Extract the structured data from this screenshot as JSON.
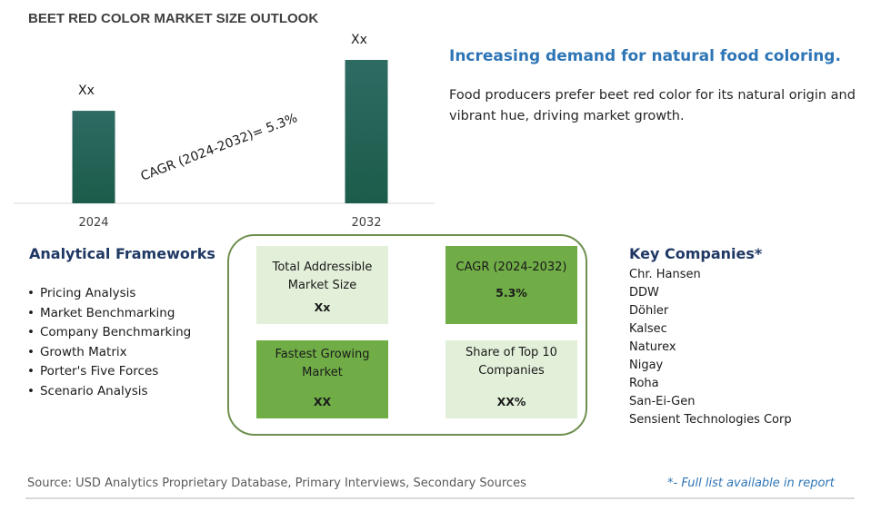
{
  "title": "BEET RED COLOR MARKET SIZE OUTLOOK",
  "chart_data": {
    "type": "bar",
    "categories": [
      "2024",
      "2032"
    ],
    "values": [
      1.0,
      1.55
    ],
    "data_labels": [
      "Xx",
      "Xx"
    ],
    "annotation": "CAGR (2024-2032)=  5.3%",
    "colors": {
      "bar_top": "#2e6b63",
      "bar_bottom": "#1b5c4a"
    }
  },
  "headline": "Increasing demand for natural food coloring.",
  "description": "Food producers prefer beet red color for its natural origin and vibrant hue, driving market growth.",
  "frameworks": {
    "title": "Analytical Frameworks",
    "items": [
      "Pricing Analysis",
      "Market Benchmarking",
      "Company Benchmarking",
      "Growth Matrix",
      "Porter's Five Forces",
      "Scenario Analysis"
    ]
  },
  "metrics": {
    "tam": {
      "label": "Total Addressible Market Size",
      "value": "Xx"
    },
    "cagr": {
      "label": "CAGR (2024-2032)",
      "value": "5.3%"
    },
    "fastest": {
      "label": "Fastest Growing Market",
      "value": "XX"
    },
    "share": {
      "label": "Share of Top 10 Companies",
      "value": "XX%"
    }
  },
  "companies": {
    "title": "Key Companies*",
    "items": [
      "Chr. Hansen",
      "DDW",
      "Döhler",
      "Kalsec",
      "Naturex",
      "Nigay",
      "Roha",
      "San-Ei-Gen",
      "Sensient Technologies Corp"
    ]
  },
  "source": "Source: USD Analytics Proprietary Database, Primary Interviews, Secondary Sources",
  "footnote": "*- Full list available in report"
}
